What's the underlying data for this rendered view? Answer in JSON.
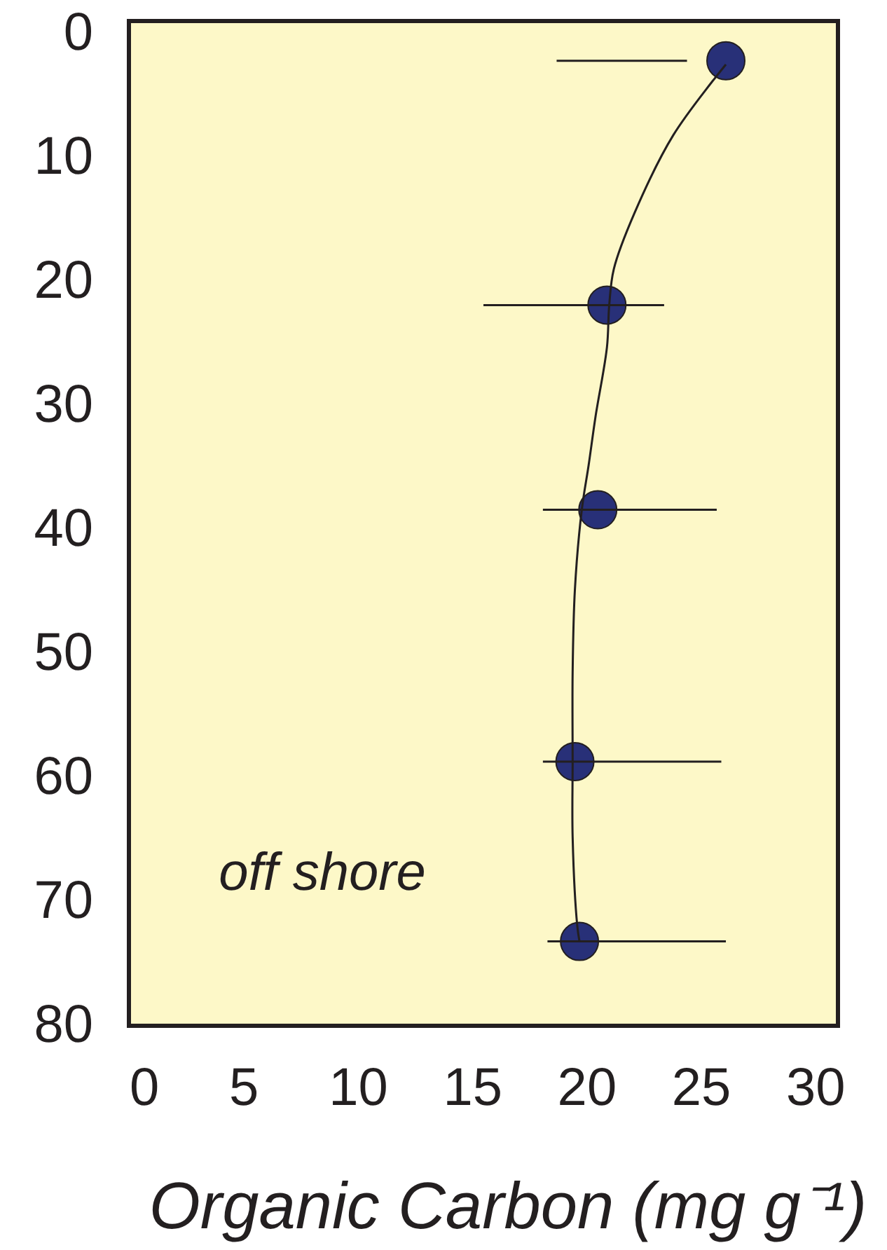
{
  "chart_data": {
    "type": "scatter",
    "xlabel": "Organic Carbon (mg g⁻¹)",
    "annotations": [
      "off shore"
    ],
    "xlim": [
      0,
      31
    ],
    "xticks": [
      0,
      5,
      10,
      15,
      20,
      25,
      30
    ],
    "ylim": [
      80,
      -1
    ],
    "yticks": [
      0,
      10,
      20,
      30,
      40,
      50,
      60,
      70,
      80
    ],
    "grid": false,
    "series": [
      {
        "color": "#283078",
        "marker": "circle",
        "x": [
          26.1,
          20.9,
          20.5,
          19.5,
          19.7
        ],
        "values": [
          2.2,
          21.9,
          38.4,
          58.7,
          73.2
        ],
        "xerrors": [
          [
            18.7,
            24.4
          ],
          [
            15.5,
            23.4
          ],
          [
            18.1,
            25.7
          ],
          [
            18.1,
            25.9
          ],
          [
            18.3,
            26.1
          ]
        ]
      },
      {
        "type": "line",
        "color": "#231f20",
        "marker": "none",
        "line_style": "solid",
        "x": [
          26.1,
          23.8,
          22.1,
          21.2,
          21.0,
          20.9,
          20.4,
          20.1,
          19.8,
          19.5,
          19.4,
          19.4,
          19.4,
          19.6,
          19.7
        ],
        "values": [
          2.5,
          8.2,
          14.5,
          19.0,
          21.9,
          25.3,
          30.9,
          34.8,
          38.4,
          44.8,
          51.5,
          58.7,
          64.8,
          71.9,
          73.2
        ]
      }
    ]
  }
}
